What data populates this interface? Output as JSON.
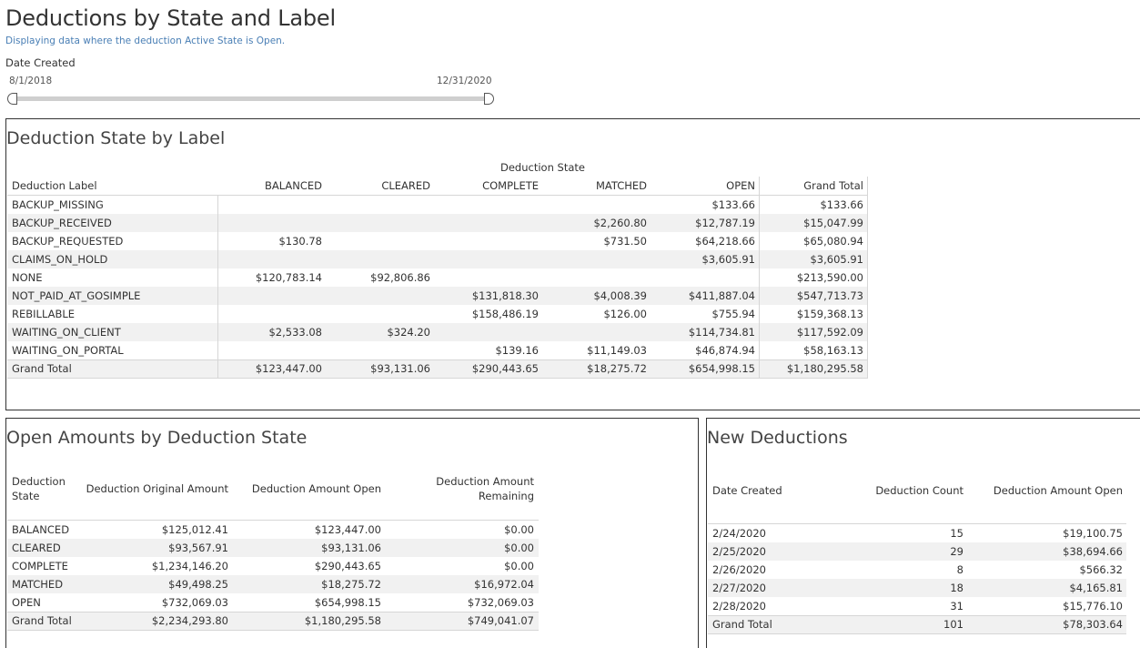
{
  "page": {
    "title": "Deductions by State and Label",
    "subtitle": "Displaying data where the deduction Active State is Open."
  },
  "filter": {
    "label": "Date Created",
    "start": "8/1/2018",
    "end": "12/31/2020"
  },
  "state_by_label": {
    "title": "Deduction State by Label",
    "group_header": "Deduction State",
    "row_header": "Deduction Label",
    "columns": [
      "BALANCED",
      "CLEARED",
      "COMPLETE",
      "MATCHED",
      "OPEN",
      "Grand Total"
    ],
    "rows": [
      {
        "label": "BACKUP_MISSING",
        "values": [
          "",
          "",
          "",
          "",
          "$133.66",
          "$133.66"
        ]
      },
      {
        "label": "BACKUP_RECEIVED",
        "values": [
          "",
          "",
          "",
          "$2,260.80",
          "$12,787.19",
          "$15,047.99"
        ]
      },
      {
        "label": "BACKUP_REQUESTED",
        "values": [
          "$130.78",
          "",
          "",
          "$731.50",
          "$64,218.66",
          "$65,080.94"
        ]
      },
      {
        "label": "CLAIMS_ON_HOLD",
        "values": [
          "",
          "",
          "",
          "",
          "$3,605.91",
          "$3,605.91"
        ]
      },
      {
        "label": "NONE",
        "values": [
          "$120,783.14",
          "$92,806.86",
          "",
          "",
          "",
          "$213,590.00"
        ]
      },
      {
        "label": "NOT_PAID_AT_GOSIMPLE",
        "values": [
          "",
          "",
          "$131,818.30",
          "$4,008.39",
          "$411,887.04",
          "$547,713.73"
        ]
      },
      {
        "label": "REBILLABLE",
        "values": [
          "",
          "",
          "$158,486.19",
          "$126.00",
          "$755.94",
          "$159,368.13"
        ]
      },
      {
        "label": "WAITING_ON_CLIENT",
        "values": [
          "$2,533.08",
          "$324.20",
          "",
          "",
          "$114,734.81",
          "$117,592.09"
        ]
      },
      {
        "label": "WAITING_ON_PORTAL",
        "values": [
          "",
          "",
          "$139.16",
          "$11,149.03",
          "$46,874.94",
          "$58,163.13"
        ]
      },
      {
        "label": "Grand Total",
        "values": [
          "$123,447.00",
          "$93,131.06",
          "$290,443.65",
          "$18,275.72",
          "$654,998.15",
          "$1,180,295.58"
        ]
      }
    ]
  },
  "open_amounts": {
    "title": "Open Amounts by Deduction State",
    "headers": {
      "state_line1": "Deduction",
      "state_line2": "State",
      "original": "Deduction Original Amount",
      "open": "Deduction Amount Open",
      "remaining_line1": "Deduction Amount",
      "remaining_line2": "Remaining"
    },
    "rows": [
      {
        "state": "BALANCED",
        "original": "$125,012.41",
        "open": "$123,447.00",
        "remaining": "$0.00"
      },
      {
        "state": "CLEARED",
        "original": "$93,567.91",
        "open": "$93,131.06",
        "remaining": "$0.00"
      },
      {
        "state": "COMPLETE",
        "original": "$1,234,146.20",
        "open": "$290,443.65",
        "remaining": "$0.00"
      },
      {
        "state": "MATCHED",
        "original": "$49,498.25",
        "open": "$18,275.72",
        "remaining": "$16,972.04"
      },
      {
        "state": "OPEN",
        "original": "$732,069.03",
        "open": "$654,998.15",
        "remaining": "$732,069.03"
      },
      {
        "state": "Grand Total",
        "original": "$2,234,293.80",
        "open": "$1,180,295.58",
        "remaining": "$749,041.07"
      }
    ]
  },
  "new_deductions": {
    "title": "New Deductions",
    "headers": {
      "date": "Date Created",
      "count": "Deduction Count",
      "open": "Deduction Amount Open"
    },
    "rows": [
      {
        "date": "2/24/2020",
        "count": "15",
        "open": "$19,100.75"
      },
      {
        "date": "2/25/2020",
        "count": "29",
        "open": "$38,694.66"
      },
      {
        "date": "2/26/2020",
        "count": "8",
        "open": "$566.32"
      },
      {
        "date": "2/27/2020",
        "count": "18",
        "open": "$4,165.81"
      },
      {
        "date": "2/28/2020",
        "count": "31",
        "open": "$15,776.10"
      },
      {
        "date": "Grand Total",
        "count": "101",
        "open": "$78,303.64"
      }
    ]
  }
}
